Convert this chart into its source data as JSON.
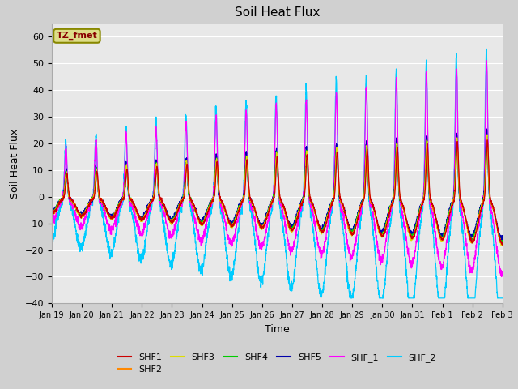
{
  "title": "Soil Heat Flux",
  "xlabel": "Time",
  "ylabel": "Soil Heat Flux",
  "ylim": [
    -40,
    65
  ],
  "yticks": [
    -40,
    -30,
    -20,
    -10,
    0,
    10,
    20,
    30,
    40,
    50,
    60
  ],
  "fig_facecolor": "#d0d0d0",
  "ax_facecolor": "#e8e8e8",
  "series_colors": {
    "SHF1": "#cc0000",
    "SHF2": "#ff8800",
    "SHF3": "#dddd00",
    "SHF4": "#00cc00",
    "SHF5": "#0000aa",
    "SHF_1": "#ff00ff",
    "SHF_2": "#00ccff"
  },
  "tz_fmet_box_facecolor": "#dddd88",
  "tz_fmet_box_edgecolor": "#888800",
  "tz_fmet_text_color": "#880000",
  "x_tick_labels": [
    "Jan 19",
    "Jan 20",
    "Jan 21",
    "Jan 22",
    "Jan 23",
    "Jan 24",
    "Jan 25",
    "Jan 26",
    "Jan 27",
    "Jan 28",
    "Jan 29",
    "Jan 30",
    "Jan 31",
    "Feb 1",
    "Feb 2",
    "Feb 3"
  ],
  "n_days": 16,
  "n_points": 3000
}
